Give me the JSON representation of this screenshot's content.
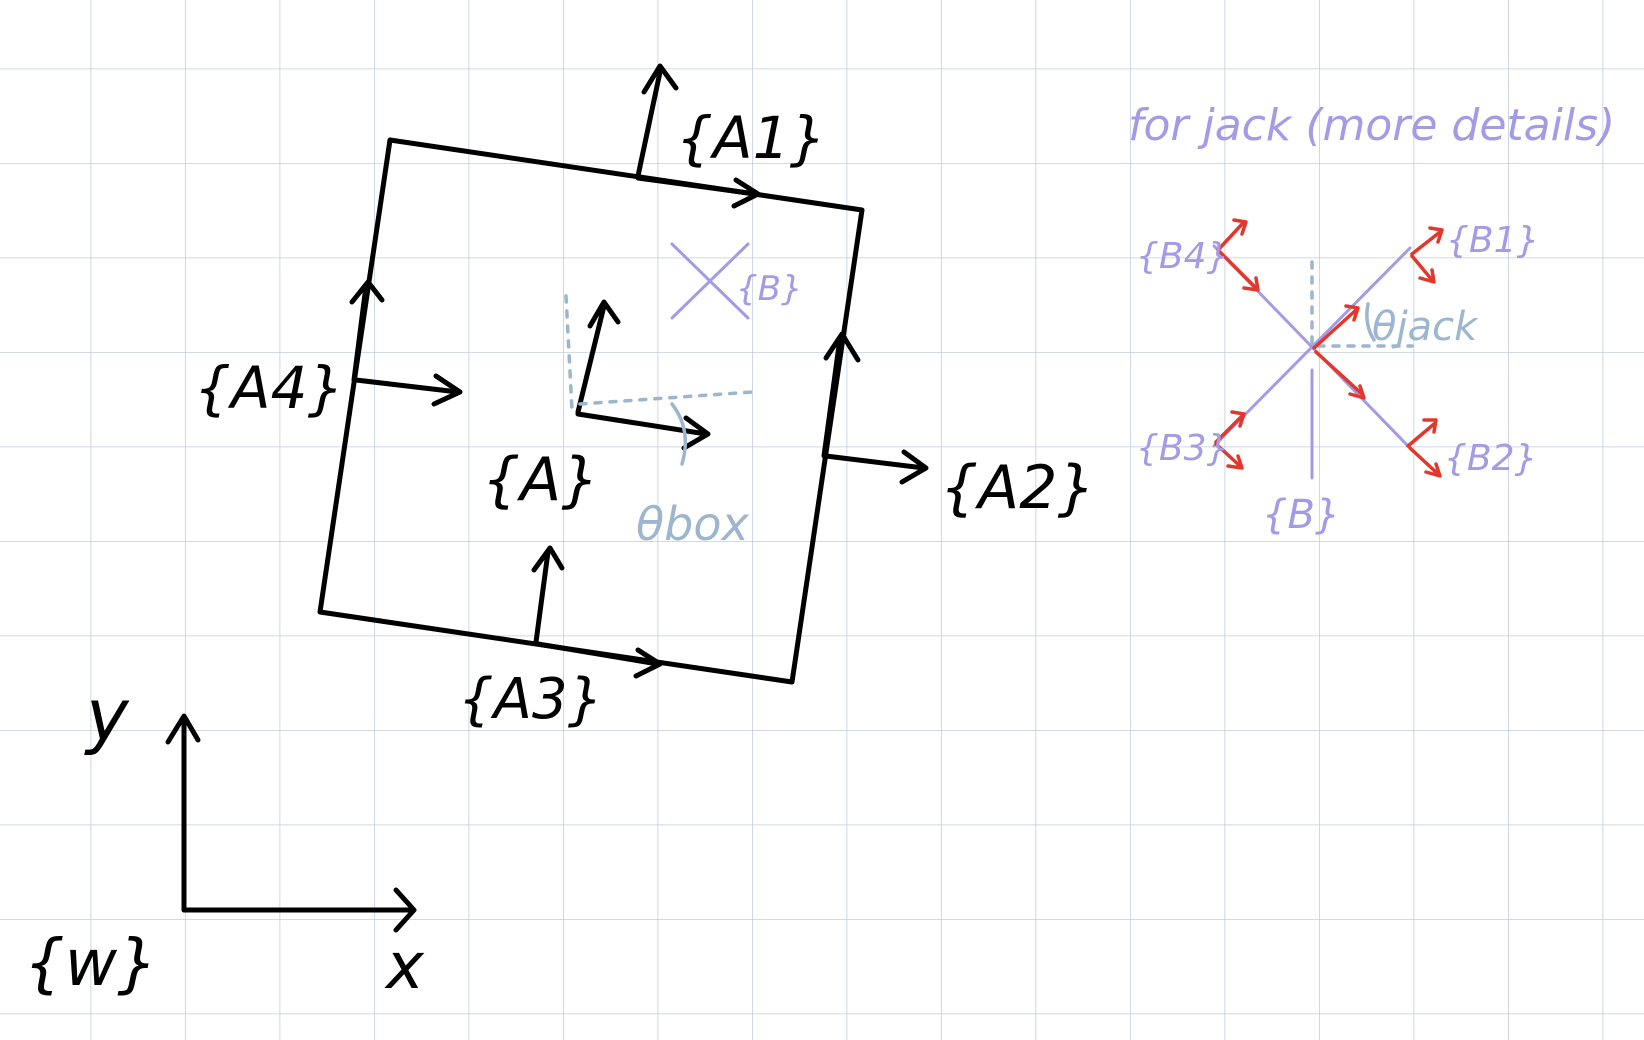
{
  "labels": {
    "world": "{w}",
    "x_axis": "x",
    "y_axis": "y",
    "box_center": "{A}",
    "side_1": "{A1}",
    "side_2": "{A2}",
    "side_3": "{A3}",
    "side_4": "{A4}",
    "jack_small": "{B}",
    "theta_box": "θbox"
  },
  "jack_detail": {
    "title": "for jack (more details)",
    "b1": "{B1}",
    "b2": "{B2}",
    "b3": "{B3}",
    "b4": "{B4}",
    "b_center": "{B}",
    "theta_jack": "θjack"
  },
  "colors": {
    "ink": "#000000",
    "jack_lavender": "#a49be6",
    "frame_red": "#e2372c",
    "angle_blue": "#9cb6cf",
    "grid": "#c3cddd"
  }
}
